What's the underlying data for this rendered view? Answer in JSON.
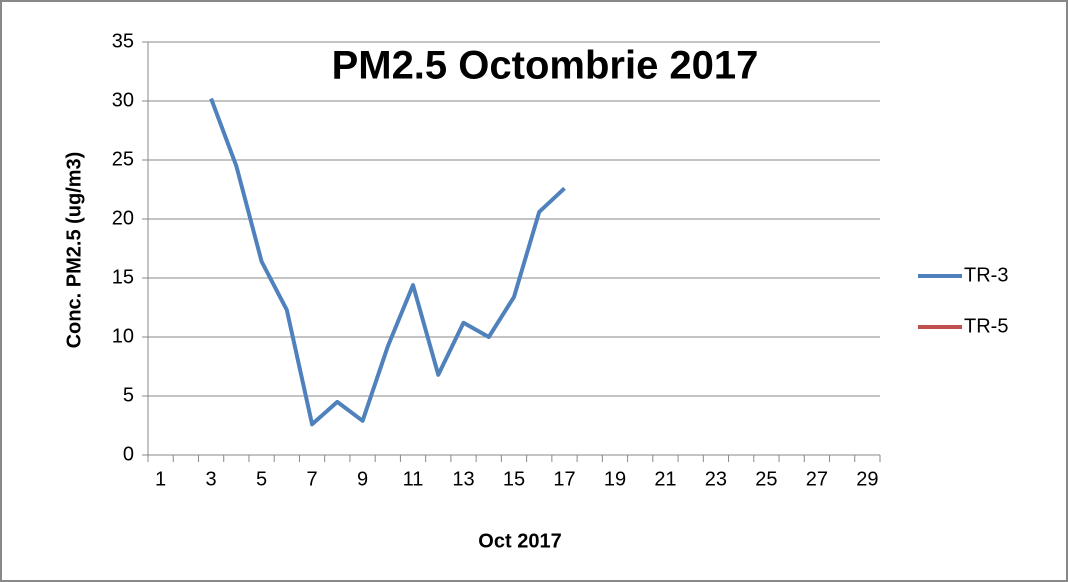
{
  "chart_data": {
    "type": "line",
    "title": "PM2.5 Octombrie 2017",
    "x_label": "Oct 2017",
    "y_label": "Conc. PM2.5 (ug/m3)",
    "categories": [
      "1",
      null,
      "3",
      null,
      "5",
      null,
      "7",
      null,
      "9",
      null,
      "11",
      null,
      "13",
      null,
      "15",
      null,
      "17",
      null,
      "19",
      null,
      "21",
      null,
      "23",
      null,
      "25",
      null,
      "27",
      null,
      "29"
    ],
    "series": [
      {
        "name": "TR-3",
        "color": "#4f81bd",
        "values": [
          null,
          null,
          30.2,
          24.5,
          16.4,
          12.3,
          2.6,
          4.5,
          2.9,
          9.2,
          14.4,
          6.8,
          11.2,
          10.0,
          13.4,
          20.6,
          22.6,
          null,
          null,
          null,
          null,
          null,
          null,
          null,
          null,
          null,
          null,
          null,
          null
        ]
      },
      {
        "name": "TR-5",
        "color": "#c0504d",
        "values": [
          null,
          null,
          null,
          null,
          null,
          null,
          null,
          null,
          null,
          null,
          null,
          null,
          null,
          null,
          null,
          null,
          null,
          null,
          null,
          null,
          null,
          null,
          null,
          null,
          null,
          null,
          null,
          null,
          null
        ]
      }
    ],
    "ylim": [
      0,
      35
    ],
    "yticks": [
      0,
      5,
      10,
      15,
      20,
      25,
      30,
      35
    ],
    "grid": true,
    "legend": "right"
  }
}
